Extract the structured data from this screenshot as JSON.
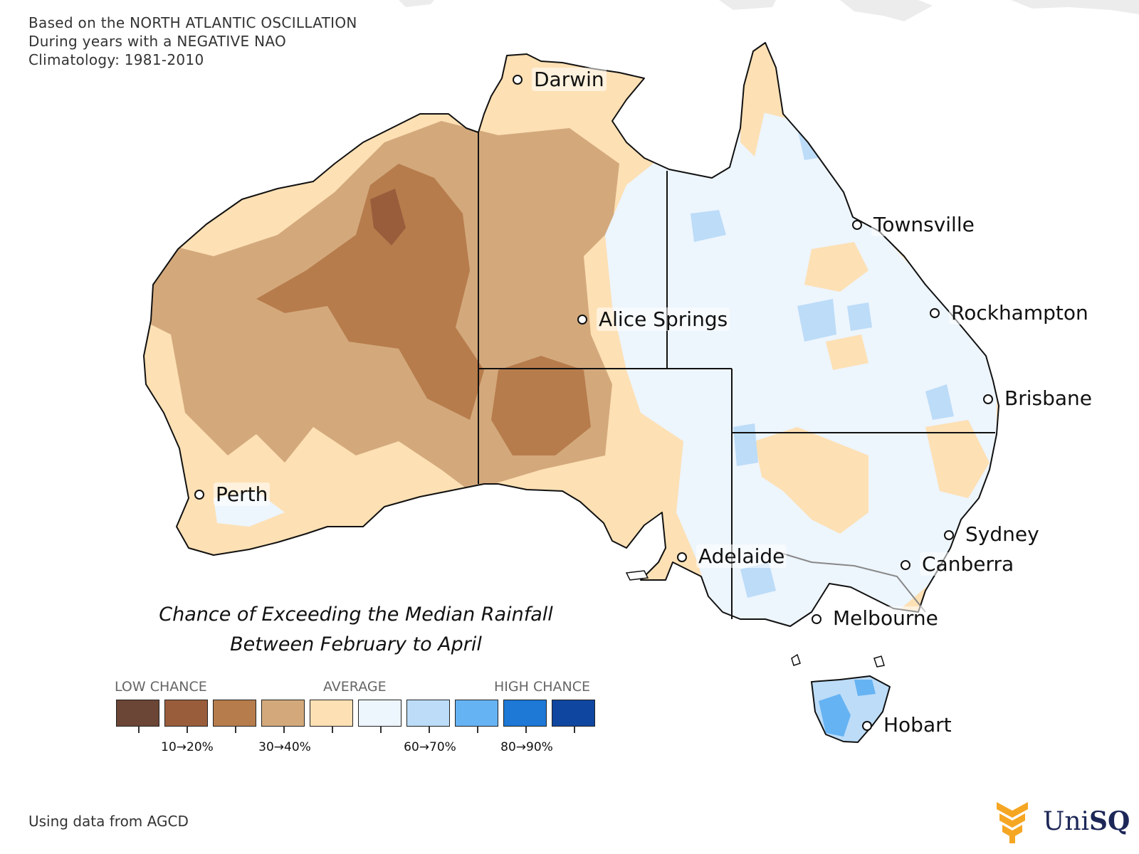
{
  "header": {
    "line1": "Based on the NORTH ATLANTIC OSCILLATION",
    "line2": "During years with a NEGATIVE NAO",
    "line3": "Climatology: 1981-2010"
  },
  "map_title": {
    "line1": "Chance of Exceeding the Median Rainfall",
    "line2": "Between February to April"
  },
  "legend": {
    "low": "LOW CHANCE",
    "average": "AVERAGE",
    "high": "HIGH CHANCE",
    "colors": [
      "#6b4535",
      "#9a5d3c",
      "#b77c4c",
      "#d3a97c",
      "#fde0b4",
      "#edf5fd",
      "#bcdcf8",
      "#66b3f3",
      "#1d78d6",
      "#0f46a0"
    ],
    "labels": [
      "10→20%",
      "30→40%",
      "60→70%",
      "80→90%"
    ]
  },
  "cities": [
    {
      "name": "Darwin"
    },
    {
      "name": "Townsville"
    },
    {
      "name": "Rockhampton"
    },
    {
      "name": "Alice Springs"
    },
    {
      "name": "Brisbane"
    },
    {
      "name": "Perth"
    },
    {
      "name": "Sydney"
    },
    {
      "name": "Adelaide"
    },
    {
      "name": "Canberra"
    },
    {
      "name": "Melbourne"
    },
    {
      "name": "Hobart"
    }
  ],
  "footer": "Using data from AGCD",
  "logo": {
    "text_uni": "Uni",
    "text_sq": "SQ"
  }
}
